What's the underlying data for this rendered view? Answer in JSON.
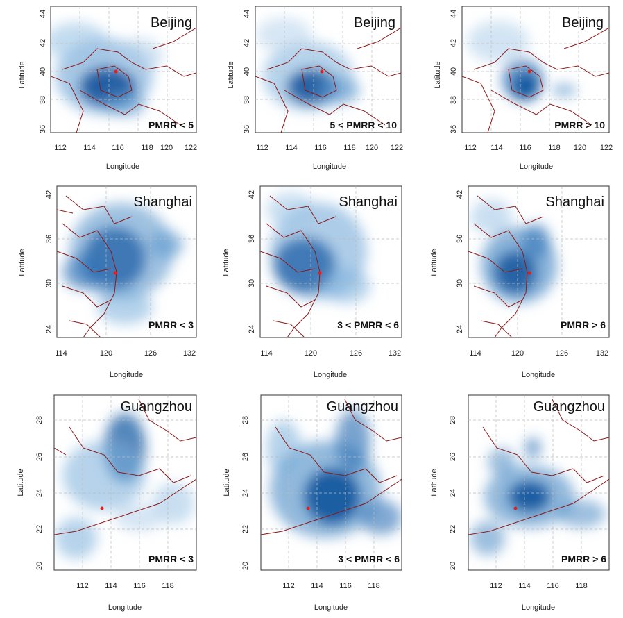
{
  "panels": [
    {
      "city": "Beijing",
      "condition": "PMRR < 5",
      "xlabel": "Longitude",
      "ylabel": "Latitude",
      "xticks": [
        "112",
        "114",
        "116",
        "118",
        "120",
        "122"
      ],
      "yticks": [
        "36",
        "38",
        "40",
        "42",
        "44"
      ]
    },
    {
      "city": "Beijing",
      "condition": "5 < PMRR < 10",
      "xlabel": "Longitude",
      "ylabel": "Latitude",
      "xticks": [
        "112",
        "114",
        "116",
        "118",
        "120",
        "122"
      ],
      "yticks": [
        "36",
        "38",
        "40",
        "42",
        "44"
      ]
    },
    {
      "city": "Beijing",
      "condition": "PMRR > 10",
      "xlabel": "Longitude",
      "ylabel": "Latitude",
      "xticks": [
        "112",
        "114",
        "116",
        "118",
        "120",
        "122"
      ],
      "yticks": [
        "36",
        "38",
        "40",
        "42",
        "44"
      ]
    },
    {
      "city": "Shanghai",
      "condition": "PMRR < 3",
      "xlabel": "Longitude",
      "ylabel": "Latitude",
      "xticks": [
        "114",
        "120",
        "126",
        "132"
      ],
      "yticks": [
        "24",
        "30",
        "36",
        "42"
      ]
    },
    {
      "city": "Shanghai",
      "condition": "3 < PMRR < 6",
      "xlabel": "Longitude",
      "ylabel": "Latitude",
      "xticks": [
        "114",
        "120",
        "126",
        "132"
      ],
      "yticks": [
        "24",
        "30",
        "36",
        "42"
      ]
    },
    {
      "city": "Shanghai",
      "condition": "PMRR > 6",
      "xlabel": "Longitude",
      "ylabel": "Latitude",
      "xticks": [
        "114",
        "120",
        "126",
        "132"
      ],
      "yticks": [
        "24",
        "30",
        "36",
        "42"
      ]
    },
    {
      "city": "Guangzhou",
      "condition": "PMRR < 3",
      "xlabel": "Longitude",
      "ylabel": "Latitude",
      "xticks": [
        "112",
        "114",
        "116",
        "118"
      ],
      "yticks": [
        "20",
        "22",
        "24",
        "26",
        "28"
      ]
    },
    {
      "city": "Guangzhou",
      "condition": "3 < PMRR < 6",
      "xlabel": "Longitude",
      "ylabel": "Latitude",
      "xticks": [
        "112",
        "114",
        "116",
        "118"
      ],
      "yticks": [
        "20",
        "22",
        "24",
        "26",
        "28"
      ]
    },
    {
      "city": "Guangzhou",
      "condition": "PMRR > 6",
      "xlabel": "Longitude",
      "ylabel": "Latitude",
      "xticks": [
        "112",
        "114",
        "116",
        "118"
      ],
      "yticks": [
        "20",
        "22",
        "24",
        "26",
        "28"
      ]
    }
  ],
  "colors": {
    "density": "#1f5fa8",
    "border": "#8b1a1a",
    "city_marker": "#e02020",
    "grid": "#bbbbbb"
  }
}
